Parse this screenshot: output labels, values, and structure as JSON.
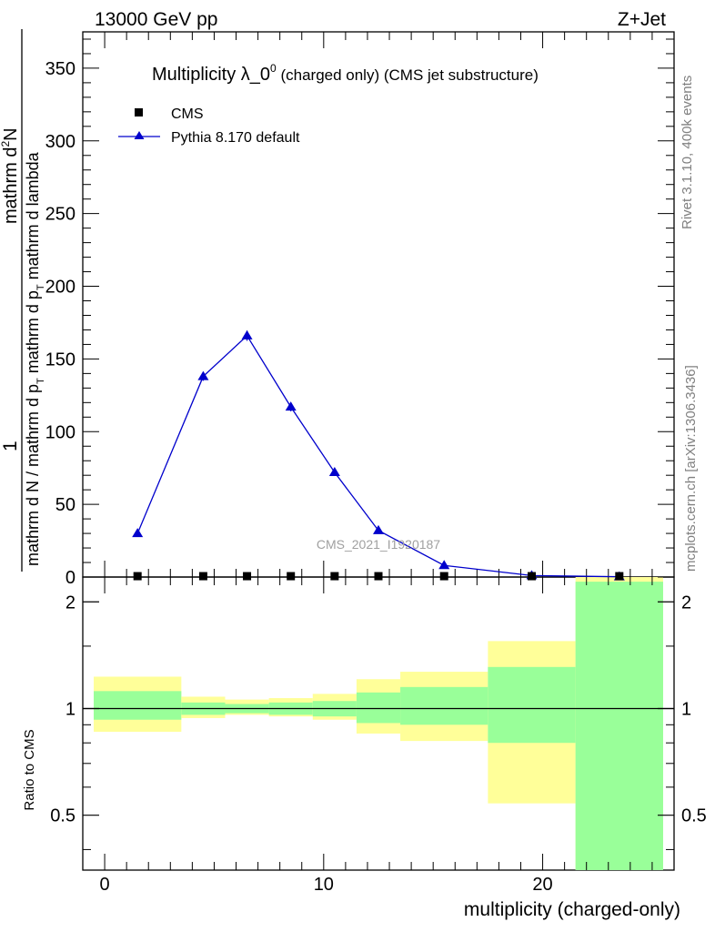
{
  "header": {
    "left": "13000 GeV pp",
    "right": "Z+Jet"
  },
  "side_text": {
    "top": "Rivet 3.1.10,  400k events",
    "bottom": "mcplots.cern.ch [arXiv:1306.3436]"
  },
  "title": {
    "main": "Multiplicity λ_0",
    "sup": "0",
    "rest": " (charged only) (CMS jet substructure)"
  },
  "legend": {
    "data": "CMS",
    "mc": "Pythia 8.170 default"
  },
  "watermark": "CMS_2021_I1920187",
  "ylabel_top": {
    "numerator_prefix": "1",
    "frac_num": "mathrm d",
    "frac_num_sup": "2",
    "frac_num_rest": "N",
    "frac_den_a": "mathrm d N / mathrm d p",
    "frac_den_a_sub": "T",
    "frac_den_b": "mathrm d p",
    "frac_den_b_sub": "T",
    "frac_den_c": " mathrm d lambda"
  },
  "ylabel_bottom": "Ratio to CMS",
  "xlabel": "multiplicity (charged-only)",
  "colors": {
    "mc": "#0000cc",
    "data": "#000000",
    "band_inner": "#99ff99",
    "band_outer": "#ffff99"
  },
  "chart_data": [
    {
      "type": "line",
      "panel": "main",
      "xlim": [
        -1,
        26
      ],
      "ylim": [
        0,
        375
      ],
      "yticks": [
        0,
        50,
        100,
        150,
        200,
        250,
        300,
        350
      ],
      "xticks": [
        0,
        10,
        20
      ],
      "series": [
        {
          "name": "CMS",
          "marker": "square",
          "x": [
            1.5,
            4.5,
            6.5,
            8.5,
            10.5,
            12.5,
            15.5,
            19.5,
            23.5
          ],
          "values": [
            0.6,
            0.6,
            0.6,
            0.6,
            0.6,
            0.6,
            0.6,
            0.6,
            0.6
          ]
        },
        {
          "name": "Pythia 8.170 default",
          "marker": "triangle",
          "x": [
            1.5,
            4.5,
            6.5,
            8.5,
            10.5,
            12.5,
            15.5,
            19.5,
            23.5
          ],
          "values": [
            30,
            138,
            166,
            117,
            72,
            32,
            8,
            1,
            0.2
          ],
          "errors": [
            1.5,
            3,
            3.5,
            3,
            2,
            1.5,
            1,
            0.5,
            0.2
          ]
        }
      ]
    },
    {
      "type": "area",
      "panel": "ratio",
      "xlim": [
        -1,
        26
      ],
      "ylim": [
        0.35,
        2.35
      ],
      "yticks": [
        0.5,
        1,
        2
      ],
      "bins": [
        {
          "lo": -0.5,
          "hi": 3.5,
          "in_lo": 0.93,
          "in_hi": 1.12,
          "out_lo": 0.86,
          "out_hi": 1.23
        },
        {
          "lo": 3.5,
          "hi": 5.5,
          "in_lo": 0.96,
          "in_hi": 1.04,
          "out_lo": 0.94,
          "out_hi": 1.08
        },
        {
          "lo": 5.5,
          "hi": 7.5,
          "in_lo": 0.97,
          "in_hi": 1.03,
          "out_lo": 0.96,
          "out_hi": 1.06
        },
        {
          "lo": 7.5,
          "hi": 9.5,
          "in_lo": 0.96,
          "in_hi": 1.04,
          "out_lo": 0.95,
          "out_hi": 1.07
        },
        {
          "lo": 9.5,
          "hi": 11.5,
          "in_lo": 0.95,
          "in_hi": 1.05,
          "out_lo": 0.93,
          "out_hi": 1.1
        },
        {
          "lo": 11.5,
          "hi": 13.5,
          "in_lo": 0.91,
          "in_hi": 1.11,
          "out_lo": 0.85,
          "out_hi": 1.21
        },
        {
          "lo": 13.5,
          "hi": 17.5,
          "in_lo": 0.9,
          "in_hi": 1.15,
          "out_lo": 0.81,
          "out_hi": 1.27
        },
        {
          "lo": 17.5,
          "hi": 21.5,
          "in_lo": 0.8,
          "in_hi": 1.31,
          "out_lo": 0.54,
          "out_hi": 1.55
        },
        {
          "lo": 21.5,
          "hi": 25.5,
          "in_lo": 0.35,
          "in_hi": 2.28,
          "out_lo": 0.35,
          "out_hi": 2.35
        }
      ],
      "reference": 1
    }
  ]
}
